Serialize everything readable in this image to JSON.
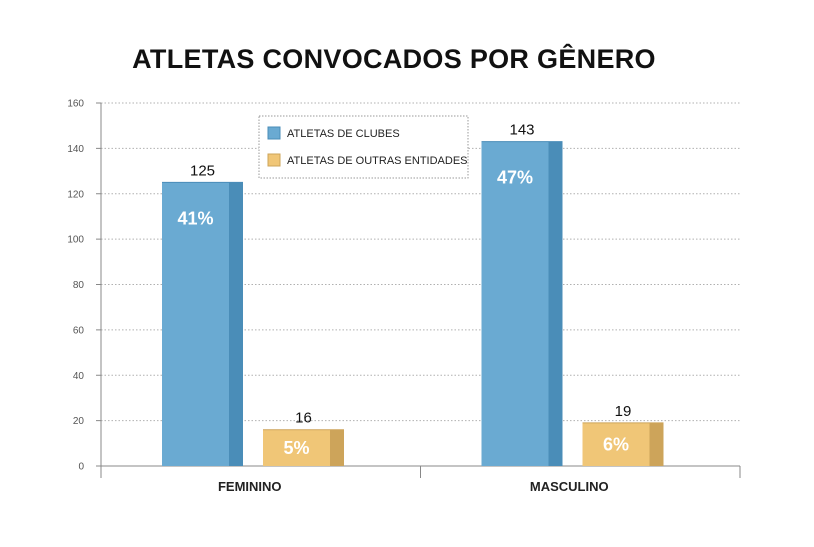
{
  "chart_data": {
    "type": "bar",
    "title": "ATLETAS CONVOCADOS POR GÊNERO",
    "xlabel": "",
    "ylabel": "",
    "categories": [
      "FEMININO",
      "MASCULINO"
    ],
    "ylim": [
      0,
      160
    ],
    "yticks": [
      0,
      20,
      40,
      60,
      80,
      100,
      120,
      140,
      160
    ],
    "grid": true,
    "legend_position": "top-center",
    "series": [
      {
        "name": "ATLETAS DE CLUBES",
        "values": [
          125,
          143
        ],
        "value_labels": [
          "125",
          "143"
        ],
        "percent_labels": [
          "41%",
          "47%"
        ],
        "color": "#6aaad2",
        "side_color": "#4a8db8"
      },
      {
        "name": "ATLETAS DE OUTRAS ENTIDADES",
        "values": [
          16,
          19
        ],
        "value_labels": [
          "16",
          "19"
        ],
        "percent_labels": [
          "5%",
          "6%"
        ],
        "color": "#f0c677",
        "side_color": "#cda45a"
      }
    ]
  }
}
